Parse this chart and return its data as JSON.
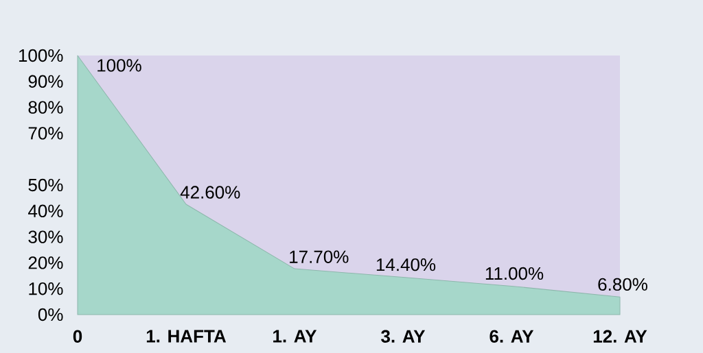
{
  "chart_data": {
    "type": "area",
    "categories": [
      "0",
      "1. HAFTA",
      "1. AY",
      "3. AY",
      "6. AY",
      "12. AY"
    ],
    "values": [
      100,
      42.6,
      17.7,
      14.4,
      11.0,
      6.8
    ],
    "value_labels": [
      "100%",
      "42.60%",
      "17.70%",
      "14.40%",
      "11.00%",
      "6.80%"
    ],
    "color": "#a6d7ca",
    "ylim": [
      0,
      100
    ],
    "yticks": [
      {
        "value": 0,
        "label": "0%"
      },
      {
        "value": 10,
        "label": "10%"
      },
      {
        "value": 20,
        "label": "20%"
      },
      {
        "value": 30,
        "label": "30%"
      },
      {
        "value": 40,
        "label": "40%"
      },
      {
        "value": 50,
        "label": "50%"
      },
      {
        "value": 70,
        "label": "70%"
      },
      {
        "value": 80,
        "label": "80%"
      },
      {
        "value": 90,
        "label": "90%"
      },
      {
        "value": 100,
        "label": "100%"
      }
    ]
  }
}
